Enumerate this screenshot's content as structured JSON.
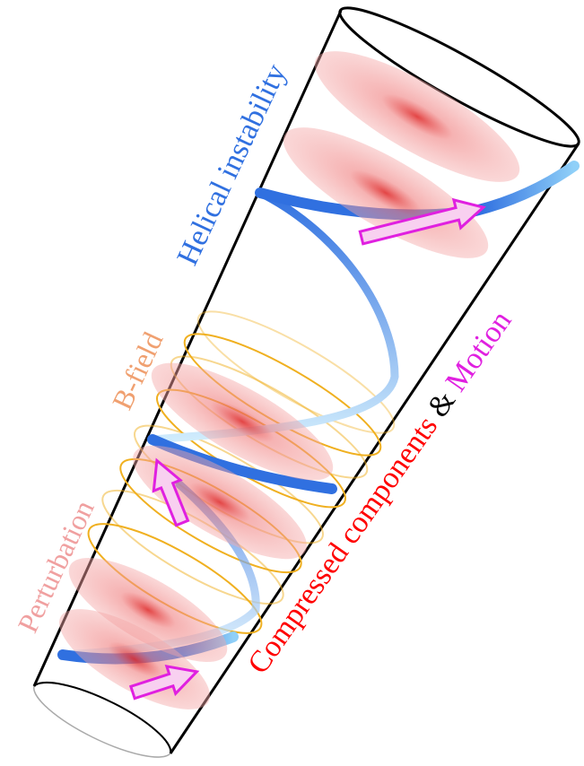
{
  "labels": {
    "helical_instability": "Helical instability",
    "b_field": "B-field",
    "perturbation": "Perturbation"
  },
  "caption": {
    "compressed": "Compressed components",
    "ampersand": "&",
    "motion": "Motion"
  }
}
